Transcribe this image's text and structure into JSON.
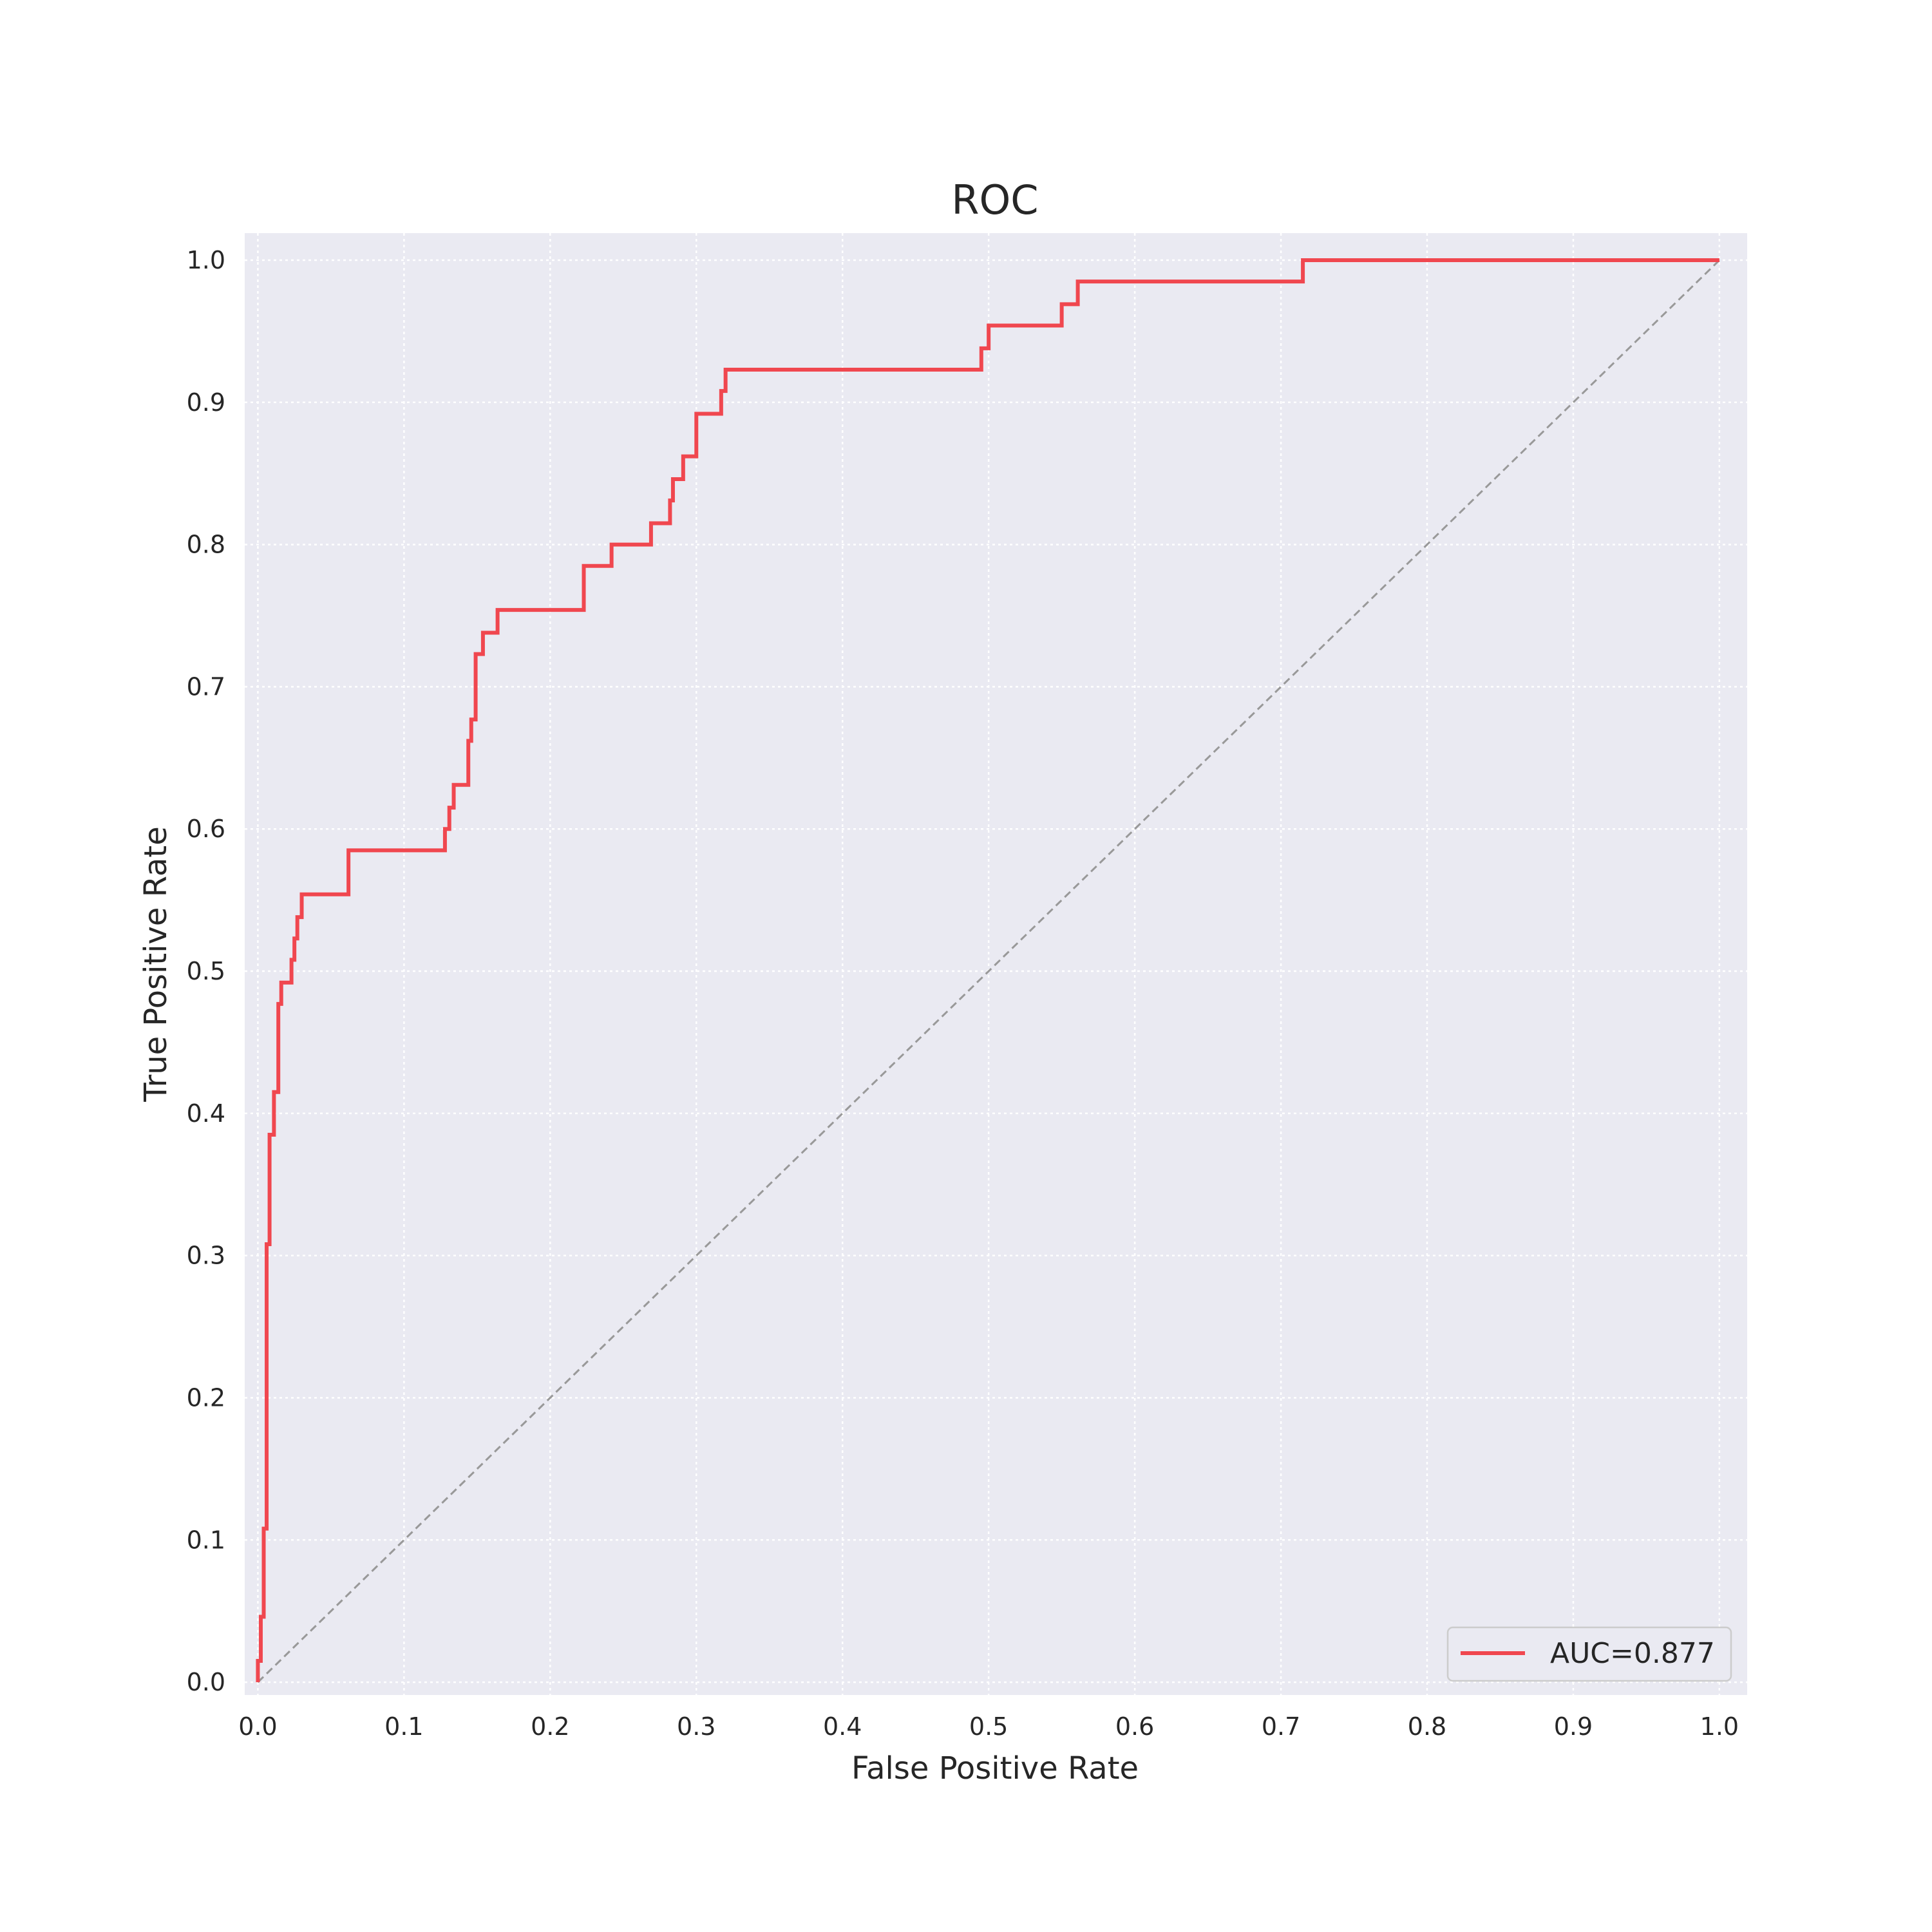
{
  "chart_data": {
    "type": "line",
    "title": "ROC",
    "xlabel": "False Positive Rate",
    "ylabel": "True Positive Rate",
    "xlim": [
      -0.009,
      1.019
    ],
    "ylim": [
      -0.009,
      1.019
    ],
    "xticks": [
      0.0,
      0.1,
      0.2,
      0.3,
      0.4,
      0.5,
      0.6,
      0.7,
      0.8,
      0.9,
      1.0
    ],
    "yticks": [
      0.0,
      0.1,
      0.2,
      0.3,
      0.4,
      0.5,
      0.6,
      0.7,
      0.8,
      0.9,
      1.0
    ],
    "xtick_labels": [
      "0.0",
      "0.1",
      "0.2",
      "0.3",
      "0.4",
      "0.5",
      "0.6",
      "0.7",
      "0.8",
      "0.9",
      "1.0"
    ],
    "ytick_labels": [
      "0.0",
      "0.1",
      "0.2",
      "0.3",
      "0.4",
      "0.5",
      "0.6",
      "0.7",
      "0.8",
      "0.9",
      "1.0"
    ],
    "grid": true,
    "legend_position": "bottom-right",
    "colors": {
      "background": "#eaeaf2",
      "grid": "#ffffff",
      "roc": "#f0474f",
      "diagonal": "#999999"
    },
    "series": [
      {
        "name": "AUC=0.877",
        "style": "solid",
        "x": [
          0.0,
          0.0,
          0.002,
          0.002,
          0.004,
          0.004,
          0.006,
          0.006,
          0.008,
          0.008,
          0.011,
          0.011,
          0.014,
          0.014,
          0.016,
          0.016,
          0.018,
          0.018,
          0.023,
          0.023,
          0.025,
          0.025,
          0.027,
          0.027,
          0.03,
          0.03,
          0.062,
          0.062,
          0.128,
          0.128,
          0.131,
          0.131,
          0.134,
          0.134,
          0.144,
          0.144,
          0.146,
          0.146,
          0.149,
          0.149,
          0.154,
          0.154,
          0.164,
          0.164,
          0.223,
          0.223,
          0.242,
          0.242,
          0.269,
          0.269,
          0.282,
          0.282,
          0.284,
          0.284,
          0.291,
          0.291,
          0.3,
          0.3,
          0.317,
          0.317,
          0.32,
          0.32,
          0.495,
          0.495,
          0.5,
          0.5,
          0.55,
          0.55,
          0.561,
          0.561,
          0.715,
          0.715,
          1.0
        ],
        "y": [
          0.0,
          0.015,
          0.015,
          0.046,
          0.046,
          0.108,
          0.108,
          0.308,
          0.308,
          0.385,
          0.385,
          0.415,
          0.415,
          0.477,
          0.477,
          0.492,
          0.492,
          0.492,
          0.492,
          0.508,
          0.508,
          0.523,
          0.523,
          0.538,
          0.538,
          0.554,
          0.554,
          0.585,
          0.585,
          0.6,
          0.6,
          0.615,
          0.615,
          0.631,
          0.631,
          0.662,
          0.662,
          0.677,
          0.677,
          0.723,
          0.723,
          0.738,
          0.738,
          0.754,
          0.754,
          0.785,
          0.785,
          0.8,
          0.8,
          0.815,
          0.815,
          0.831,
          0.831,
          0.846,
          0.846,
          0.862,
          0.862,
          0.892,
          0.892,
          0.908,
          0.908,
          0.923,
          0.923,
          0.938,
          0.938,
          0.954,
          0.954,
          0.969,
          0.969,
          0.985,
          0.985,
          1.0,
          1.0
        ]
      },
      {
        "name": "",
        "style": "dashed",
        "x": [
          0.0,
          1.0
        ],
        "y": [
          0.0,
          1.0
        ]
      }
    ]
  }
}
